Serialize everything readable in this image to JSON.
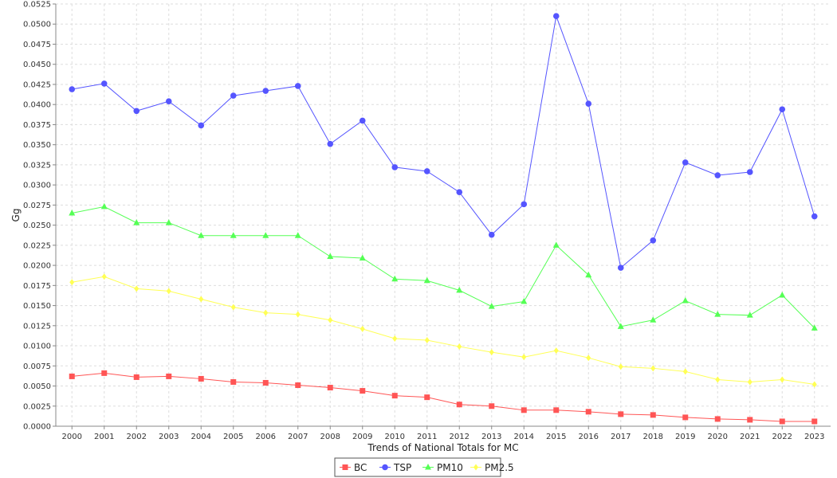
{
  "chart_data": {
    "type": "line",
    "title": "",
    "xlabel": "Trends of National Totals for MC",
    "ylabel": "Gg",
    "ylim": [
      0,
      0.0525
    ],
    "y_ticks": [
      "0.0000",
      "0.0025",
      "0.0050",
      "0.0075",
      "0.0100",
      "0.0125",
      "0.0150",
      "0.0175",
      "0.0200",
      "0.0225",
      "0.0250",
      "0.0275",
      "0.0300",
      "0.0325",
      "0.0350",
      "0.0375",
      "0.0400",
      "0.0425",
      "0.0450",
      "0.0475",
      "0.0500",
      "0.0525"
    ],
    "categories": [
      "2000",
      "2001",
      "2002",
      "2003",
      "2004",
      "2005",
      "2006",
      "2007",
      "2008",
      "2009",
      "2010",
      "2011",
      "2012",
      "2013",
      "2014",
      "2015",
      "2016",
      "2017",
      "2018",
      "2019",
      "2020",
      "2021",
      "2022",
      "2023"
    ],
    "grid": true,
    "legend_position": "bottom",
    "series": [
      {
        "name": "BC",
        "color": "#ff5555",
        "marker": "square",
        "values": [
          0.0062,
          0.0066,
          0.0061,
          0.0062,
          0.0059,
          0.0055,
          0.0054,
          0.0051,
          0.0048,
          0.0044,
          0.0038,
          0.0036,
          0.0027,
          0.0025,
          0.002,
          0.002,
          0.0018,
          0.0015,
          0.0014,
          0.0011,
          0.0009,
          0.0008,
          0.0006,
          0.0006
        ]
      },
      {
        "name": "TSP",
        "color": "#5555ff",
        "marker": "circle",
        "values": [
          0.0419,
          0.0426,
          0.0392,
          0.0404,
          0.0374,
          0.0411,
          0.0417,
          0.0423,
          0.0351,
          0.038,
          0.0322,
          0.0317,
          0.0291,
          0.0238,
          0.0276,
          0.051,
          0.0401,
          0.0197,
          0.0231,
          0.0328,
          0.0312,
          0.0316,
          0.0394,
          0.0261
        ]
      },
      {
        "name": "PM10",
        "color": "#55ff55",
        "marker": "triangle",
        "values": [
          0.0265,
          0.0273,
          0.0253,
          0.0253,
          0.0237,
          0.0237,
          0.0237,
          0.0237,
          0.0211,
          0.0209,
          0.0183,
          0.0181,
          0.0169,
          0.0149,
          0.0155,
          0.0225,
          0.0188,
          0.0124,
          0.0132,
          0.0156,
          0.0139,
          0.0138,
          0.0163,
          0.0122
        ]
      },
      {
        "name": "PM2.5",
        "color": "#ffff55",
        "marker": "diamond",
        "values": [
          0.0179,
          0.0186,
          0.0171,
          0.0168,
          0.0158,
          0.0148,
          0.0141,
          0.0139,
          0.0132,
          0.0121,
          0.0109,
          0.0107,
          0.0099,
          0.0092,
          0.0086,
          0.0094,
          0.0085,
          0.0074,
          0.0072,
          0.0068,
          0.0058,
          0.0055,
          0.0058,
          0.0052
        ]
      }
    ]
  }
}
